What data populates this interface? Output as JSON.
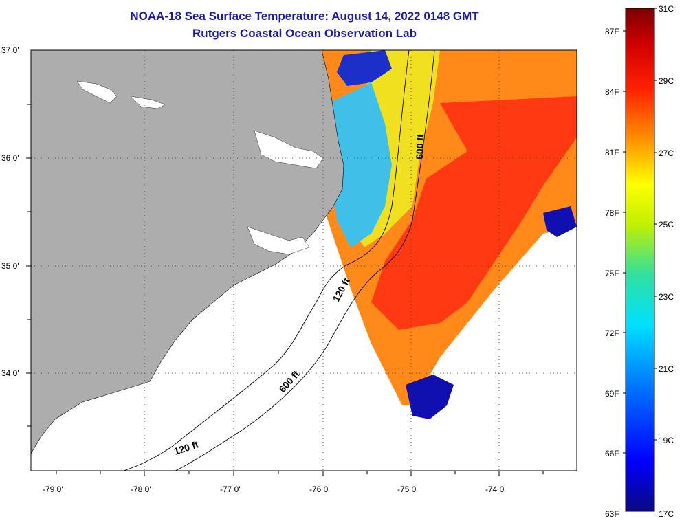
{
  "title": {
    "line1": "NOAA-18 Sea Surface Temperature:  August 14, 2022 0148 GMT",
    "line2": "Rutgers Coastal Ocean Observation Lab"
  },
  "map": {
    "lat_labels": [
      "37 0'",
      "36 0'",
      "35 0'",
      "34 0'"
    ],
    "lon_labels": [
      "-79 0'",
      "-78 0'",
      "-77 0'",
      "-76 0'",
      "-75 0'",
      "-74 0'"
    ],
    "contour_labels": [
      "600 ft",
      "120 ft",
      "600 ft",
      "120 ft"
    ],
    "colors": {
      "land": "#adadad",
      "sst_cold": "#1010b0",
      "sst_cool": "#3fa9f5",
      "sst_mid": "#f0f000",
      "sst_warm": "#ff8a00",
      "sst_hot": "#ff3a10"
    }
  },
  "colorbar": {
    "fahrenheit": [
      "87F",
      "84F",
      "81F",
      "78F",
      "75F",
      "72F",
      "69F",
      "66F",
      "63F"
    ],
    "celsius": [
      "31C",
      "29C",
      "27C",
      "25C",
      "23C",
      "21C",
      "19C",
      "17C"
    ],
    "min_label_f": "63F",
    "min_label_c": "17C",
    "range_f": [
      63,
      88
    ],
    "range_c": [
      17,
      31
    ]
  }
}
